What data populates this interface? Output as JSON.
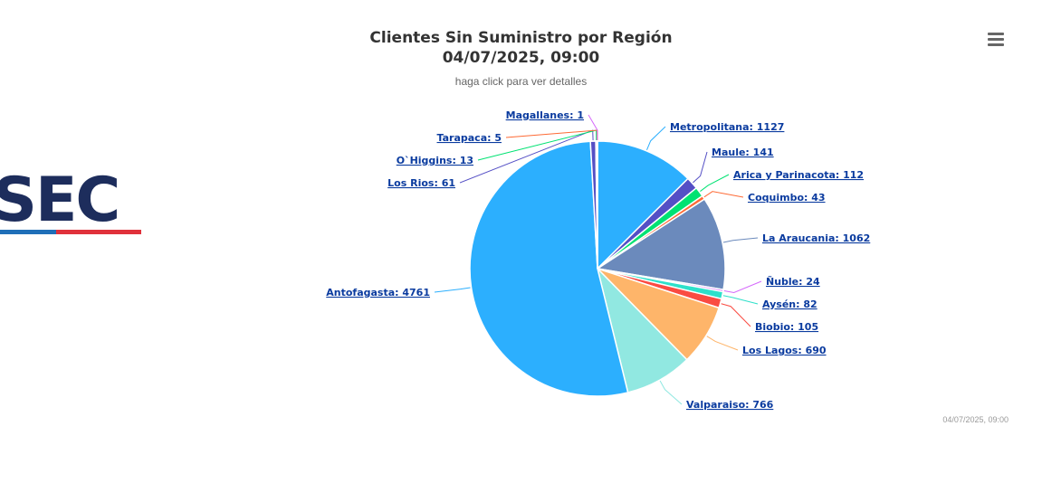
{
  "logo": {
    "text": "SEC",
    "colors": {
      "navy": "#1d2d5c",
      "blue": "#1f6fb8",
      "red": "#e0313b"
    }
  },
  "chart": {
    "title_line1": "Clientes Sin Suministro por Región",
    "title_line2": "04/07/2025, 09:00",
    "subtitle": "haga click para ver detalles",
    "credit": "04/07/2025, 09:00",
    "menu_icon": "hamburger-menu-icon"
  },
  "chart_data": {
    "type": "pie",
    "title": "Clientes Sin Suministro por Región 04/07/2025, 09:00",
    "subtitle": "haga click para ver detalles",
    "slices": [
      {
        "name": "Metropolitana",
        "value": 1127,
        "color": "#2caffe"
      },
      {
        "name": "Maule",
        "value": 141,
        "color": "#544fc5"
      },
      {
        "name": "Arica y Parinacota",
        "value": 112,
        "color": "#00e272"
      },
      {
        "name": "Coquimbo",
        "value": 43,
        "color": "#fe6a35"
      },
      {
        "name": "La Araucania",
        "value": 1062,
        "color": "#6b8abc"
      },
      {
        "name": "Ñuble",
        "value": 24,
        "color": "#d568fb"
      },
      {
        "name": "Aysén",
        "value": 82,
        "color": "#2ee0ca"
      },
      {
        "name": "Biobio",
        "value": 105,
        "color": "#fa4b42"
      },
      {
        "name": "Los Lagos",
        "value": 690,
        "color": "#feb56a"
      },
      {
        "name": "Valparaiso",
        "value": 766,
        "color": "#91e8e1"
      },
      {
        "name": "Antofagasta",
        "value": 4761,
        "color": "#2caffe"
      },
      {
        "name": "Los Rios",
        "value": 61,
        "color": "#544fc5"
      },
      {
        "name": "O`Higgins",
        "value": 13,
        "color": "#00e272"
      },
      {
        "name": "Tarapaca",
        "value": 5,
        "color": "#fe6a35"
      },
      {
        "name": "Magallanes",
        "value": 1,
        "color": "#d568fb"
      }
    ]
  }
}
